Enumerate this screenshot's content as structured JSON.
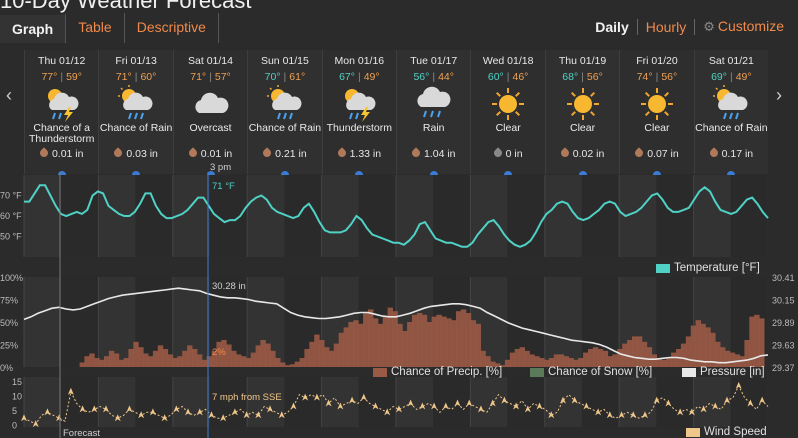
{
  "header": {
    "title": "10-Day Weather Forecast"
  },
  "tabs": [
    {
      "label": "Graph",
      "active": true
    },
    {
      "label": "Table",
      "active": false
    },
    {
      "label": "Descriptive",
      "active": false
    }
  ],
  "views": {
    "daily": "Daily",
    "hourly": "Hourly",
    "customize": "Customize"
  },
  "nav": {
    "prev": "‹",
    "next": "›"
  },
  "days": [
    {
      "date": "Thu 01/12",
      "high": "77°",
      "low": "59°",
      "icon": "thunderstorm-icon",
      "condition": "Chance of a Thunderstorm",
      "precip": "0.01 in"
    },
    {
      "date": "Fri 01/13",
      "high": "71°",
      "low": "60°",
      "icon": "partly-cloudy-rain-icon",
      "condition": "Chance of Rain",
      "precip": "0.03 in"
    },
    {
      "date": "Sat 01/14",
      "high": "71°",
      "low": "57°",
      "icon": "cloud-icon",
      "condition": "Overcast",
      "precip": "0.01 in"
    },
    {
      "date": "Sun 01/15",
      "high": "70°",
      "low": "61°",
      "icon": "partly-cloudy-rain-icon",
      "condition": "Chance of Rain",
      "precip": "0.21 in"
    },
    {
      "date": "Mon 01/16",
      "high": "67°",
      "low": "49°",
      "icon": "thunderstorm-icon",
      "condition": "Thunderstorm",
      "precip": "1.33 in"
    },
    {
      "date": "Tue 01/17",
      "high": "56°",
      "low": "44°",
      "icon": "rain-icon",
      "condition": "Rain",
      "precip": "1.04 in"
    },
    {
      "date": "Wed 01/18",
      "high": "60°",
      "low": "46°",
      "icon": "sun-icon",
      "condition": "Clear",
      "precip": "0 in"
    },
    {
      "date": "Thu 01/19",
      "high": "68°",
      "low": "56°",
      "icon": "sun-icon",
      "condition": "Clear",
      "precip": "0.02 in"
    },
    {
      "date": "Fri 01/20",
      "high": "74°",
      "low": "56°",
      "icon": "sun-icon",
      "condition": "Clear",
      "precip": "0.07 in"
    },
    {
      "date": "Sat 01/21",
      "high": "69°",
      "low": "49°",
      "icon": "partly-cloudy-rain-icon",
      "condition": "Chance of Rain",
      "precip": "0.17 in"
    }
  ],
  "cursor": {
    "time": "3 pm",
    "temperature": "71 °F",
    "precip_chance": "2%",
    "pressure": "30.28 in",
    "wind": "7 mph from SSE"
  },
  "temperature_chart": {
    "ticks": [
      "70 °F",
      "60 °F",
      "50 °F"
    ],
    "legend": "Temperature [°F]",
    "color": "#4fd1c5",
    "values": [
      67,
      67,
      71,
      75,
      75,
      70,
      65,
      61,
      60,
      61,
      62,
      61,
      63,
      70,
      72,
      71,
      65,
      63,
      61,
      60,
      60,
      62,
      66,
      71,
      71,
      65,
      61,
      59,
      59,
      60,
      61,
      63,
      66,
      69,
      69,
      65,
      61,
      59,
      57,
      58,
      58,
      60,
      64,
      67,
      69,
      70,
      68,
      64,
      62,
      61,
      60,
      59,
      60,
      64,
      66,
      62,
      57,
      53,
      52,
      52,
      52,
      53,
      56,
      60,
      58,
      54,
      51,
      50,
      49,
      48,
      47,
      47,
      46,
      48,
      51,
      56,
      57,
      53,
      49,
      48,
      47,
      47,
      46,
      45,
      45,
      47,
      51,
      54,
      57,
      58,
      55,
      51,
      48,
      46,
      45,
      46,
      48,
      52,
      57,
      61,
      63,
      66,
      67,
      66,
      62,
      59,
      58,
      59,
      61,
      63,
      66,
      67,
      66,
      62,
      60,
      61,
      62,
      64,
      67,
      70,
      71,
      68,
      64,
      62,
      62,
      63,
      64,
      68,
      72,
      74,
      72,
      67,
      63,
      62,
      61,
      62,
      65,
      68,
      69,
      66,
      62,
      59
    ]
  },
  "precip_chart": {
    "ticks_left": [
      "100%",
      "75%",
      "50%",
      "25%",
      "0%"
    ],
    "ticks_right": [
      "30.41",
      "30.15",
      "29.89",
      "29.63",
      "29.37"
    ],
    "legend_precip": "Chance of Precip. [%]",
    "legend_snow": "Chance of Snow [%]",
    "legend_pressure": "Pressure [in]",
    "precip_color": "#9a5a45",
    "snow_color": "#5a7a5a",
    "pressure_color": "#e8e8e8",
    "precip_values": [
      0,
      0,
      0,
      0,
      5,
      12,
      15,
      10,
      8,
      12,
      18,
      15,
      8,
      10,
      20,
      28,
      22,
      15,
      12,
      18,
      24,
      20,
      14,
      10,
      12,
      18,
      24,
      20,
      14,
      8,
      12,
      18,
      28,
      30,
      25,
      18,
      14,
      12,
      10,
      16,
      24,
      30,
      26,
      18,
      10,
      5,
      2,
      3,
      6,
      10,
      20,
      28,
      36,
      30,
      22,
      18,
      26,
      38,
      44,
      50,
      52,
      48,
      60,
      64,
      54,
      48,
      56,
      66,
      62,
      48,
      40,
      50,
      58,
      60,
      58,
      50,
      56,
      58,
      56,
      54,
      52,
      62,
      64,
      60,
      52,
      48,
      18,
      12,
      6,
      4,
      2,
      8,
      16,
      20,
      22,
      18,
      14,
      12,
      10,
      8,
      10,
      14,
      14,
      12,
      10,
      8,
      10,
      16,
      20,
      22,
      20,
      18,
      12,
      14,
      20,
      26,
      30,
      34,
      34,
      28,
      22,
      14,
      10,
      8,
      10,
      16,
      20,
      26,
      34,
      46,
      52,
      48,
      44,
      38,
      28,
      22,
      18,
      16,
      14,
      12,
      30,
      56,
      58,
      54
    ],
    "pressure_values": [
      29.92,
      29.95,
      29.99,
      30.02,
      30.05,
      30.06,
      30.04,
      30.03,
      30.04,
      30.07,
      30.1,
      30.13,
      30.16,
      30.18,
      30.2,
      30.21,
      30.22,
      30.23,
      30.24,
      30.25,
      30.26,
      30.27,
      30.28,
      30.27,
      30.26,
      30.25,
      30.22,
      30.2,
      30.18,
      30.17,
      30.17,
      30.16,
      30.15,
      30.13,
      30.12,
      30.11,
      30.1,
      30.05,
      30.0,
      29.97,
      29.95,
      29.94,
      29.93,
      29.93,
      29.94,
      29.95,
      29.97,
      29.99,
      30.0,
      30.0,
      29.98,
      29.96,
      29.95,
      29.95,
      29.97,
      29.99,
      30.02,
      30.05,
      30.07,
      30.08,
      30.09,
      30.1,
      30.1,
      30.09,
      30.07,
      30.05,
      30.0,
      29.96,
      29.92,
      29.88,
      29.85,
      29.82,
      29.8,
      29.78,
      29.76,
      29.74,
      29.72,
      29.7,
      29.68,
      29.67,
      29.66,
      29.65,
      29.63,
      29.6,
      29.56,
      29.52,
      29.5,
      29.48,
      29.47,
      29.46,
      29.46,
      29.47,
      29.48,
      29.48,
      29.47,
      29.45,
      29.44,
      29.43,
      29.43,
      29.42,
      29.42,
      29.43,
      29.44,
      29.45,
      29.47,
      29.5,
      29.51
    ]
  },
  "wind_chart": {
    "ticks": [
      "15",
      "10",
      "5",
      "0"
    ],
    "legend": "Wind Speed",
    "color": "#f0c78a",
    "values": [
      3,
      2,
      1,
      4,
      5,
      4,
      3,
      2,
      12,
      8,
      6,
      5,
      6,
      7,
      6,
      4,
      3,
      4,
      6,
      5,
      4,
      5,
      5,
      4,
      3,
      4,
      6,
      7,
      5,
      4,
      5,
      6,
      4,
      3,
      3,
      4,
      5,
      6,
      4,
      5,
      4,
      7,
      6,
      5,
      4,
      5,
      7,
      11,
      10,
      11,
      10,
      11,
      8,
      10,
      7,
      8,
      9,
      8,
      10,
      8,
      7,
      6,
      5,
      7,
      6,
      7,
      8,
      6,
      7,
      8,
      7,
      5,
      7,
      6,
      8,
      6,
      8,
      7,
      6,
      5,
      8,
      11,
      9,
      8,
      7,
      9,
      6,
      8,
      7,
      6,
      4,
      5,
      9,
      11,
      9,
      8,
      7,
      6,
      5,
      6,
      4,
      3,
      4,
      5,
      4,
      3,
      4,
      5,
      9,
      10,
      8,
      6,
      5,
      6,
      5,
      7,
      6,
      8,
      7,
      6,
      9,
      10,
      14,
      10,
      8,
      6,
      9,
      7
    ]
  },
  "footer": {
    "label": "Forecast"
  }
}
